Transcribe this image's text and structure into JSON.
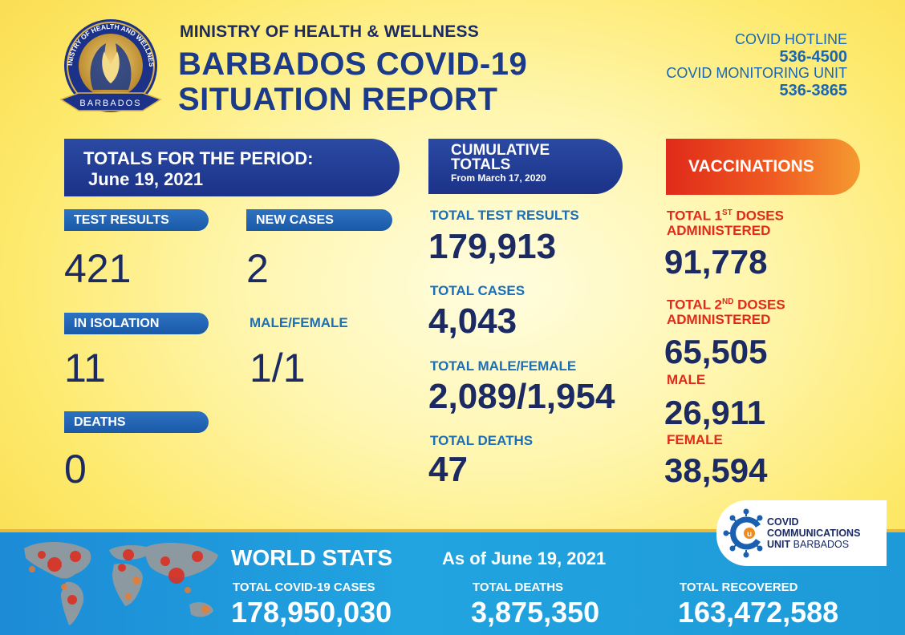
{
  "header": {
    "ministry": "MINISTRY OF HEALTH & WELLNESS",
    "title_line1": "BARBADOS COVID-19",
    "title_line2": "SITUATION REPORT",
    "logo_top_text": "MINISTRY OF HEALTH AND WELLNESS",
    "logo_ribbon_text": "BARBADOS"
  },
  "hotline": {
    "label1": "COVID HOTLINE",
    "number1": "536-4500",
    "label2": "COVID MONITORING UNIT",
    "number2": "536-3865"
  },
  "period": {
    "banner_line1": "TOTALS FOR THE PERIOD:",
    "banner_line2": "June 19, 2021",
    "test_results_label": "TEST RESULTS",
    "test_results_value": "421",
    "new_cases_label": "NEW CASES",
    "new_cases_value": "2",
    "in_isolation_label": "IN ISOLATION",
    "in_isolation_value": "11",
    "male_female_label": "MALE/FEMALE",
    "male_female_value": "1/1",
    "deaths_label": "DEATHS",
    "deaths_value": "0"
  },
  "cumulative": {
    "banner_line1": "CUMULATIVE",
    "banner_line2": "TOTALS",
    "banner_line3": "From March 17, 2020",
    "test_results_label": "TOTAL TEST RESULTS",
    "test_results_value": "179,913",
    "cases_label": "TOTAL CASES",
    "cases_value": "4,043",
    "male_female_label": "TOTAL MALE/FEMALE",
    "male_female_value": "2,089/1,954",
    "deaths_label": "TOTAL DEATHS",
    "deaths_value": "47"
  },
  "vaccinations": {
    "banner": "VACCINATIONS",
    "first_label_a": "TOTAL 1",
    "first_sup": "ST",
    "first_label_b": " DOSES",
    "first_label_c": "ADMINISTERED",
    "first_value": "91,778",
    "second_label_a": "TOTAL 2",
    "second_sup": "ND",
    "second_label_b": " DOSES",
    "second_label_c": "ADMINISTERED",
    "second_value": "65,505",
    "male_label": "MALE",
    "male_value": "26,911",
    "female_label": "FEMALE",
    "female_value": "38,594"
  },
  "world": {
    "title": "WORLD STATS",
    "as_of": "As of June 19, 2021",
    "cases_label": "TOTAL COVID-19 CASES",
    "cases_value": "178,950,030",
    "deaths_label": "TOTAL DEATHS",
    "deaths_value": "3,875,350",
    "recovered_label": "TOTAL RECOVERED",
    "recovered_value": "163,472,588"
  },
  "ccu": {
    "line1": "COVID",
    "line2": "COMMUNICATIONS",
    "line3a": "UNIT",
    "line3b": " BARBADOS"
  },
  "colors": {
    "navy": "#1b2a63",
    "blue": "#1a6fb8",
    "red": "#e02a1a",
    "banner_navy": "#1b3288",
    "world_blue": "#1e9ad8"
  }
}
